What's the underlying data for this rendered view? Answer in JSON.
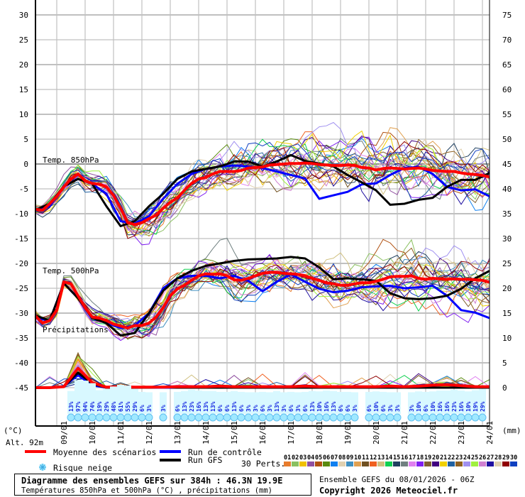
{
  "chart_data": {
    "type": "line",
    "title": "Diagramme des ensembles GEFS sur 384h : 46.3N 19.9E",
    "subtitle": "Températures 850hPa et 500hPa (°C) , précipitations (mm)",
    "run_info": "Ensemble GEFS du 08/01/2026 - 06Z",
    "copyright": "Copyright 2026 Meteociel.fr",
    "altitude_label": "Alt. 92m",
    "left_unit": "(°C)",
    "right_unit": "(mm)",
    "left_ticks": [
      30,
      25,
      20,
      15,
      10,
      5,
      0,
      -5,
      -10,
      -15,
      -20,
      -25,
      -30,
      -35,
      -40,
      -45
    ],
    "right_ticks": [
      75,
      70,
      65,
      60,
      55,
      50,
      45,
      40,
      35,
      30,
      25,
      20,
      15,
      10,
      5,
      0
    ],
    "ylim_temp": [
      -45,
      30
    ],
    "ylim_precip": [
      0,
      75
    ],
    "x_hours_range": [
      0,
      384
    ],
    "date_labels": [
      "09/01",
      "10/01",
      "11/01",
      "12/01",
      "13/01",
      "14/01",
      "15/01",
      "16/01",
      "17/01",
      "18/01",
      "19/01",
      "20/01",
      "21/01",
      "22/01",
      "23/01",
      "24/01"
    ],
    "panel_labels": {
      "t850": "Temp. 850hPa",
      "t500": "Temp. 500hPa",
      "precip": "Précipitations"
    },
    "mean_step_hours": 6,
    "t850_mean": [
      -9.1,
      -9.3,
      -8.0,
      -6.5,
      -4.6,
      -3.0,
      -2.0,
      -3.4,
      -3.9,
      -4.1,
      -4.6,
      -6.3,
      -8.9,
      -11.8,
      -12.2,
      -11.8,
      -11.0,
      -10.3,
      -8.9,
      -7.7,
      -6.8,
      -5.3,
      -3.9,
      -3.0,
      -2.7,
      -2.0,
      -1.5,
      -1.5,
      -1.5,
      -1.3,
      -0.8,
      -0.7,
      -0.6,
      -0.2,
      -0.1,
      0.0,
      0.1,
      0.1,
      0.2,
      0.1,
      -0.1,
      -0.2,
      -0.3,
      -0.3,
      -0.2,
      -0.3,
      -0.7,
      -0.8,
      -1.2,
      -0.9,
      -0.8,
      -0.9,
      -1.0,
      -0.9,
      -0.8,
      -1.0,
      -1.3,
      -1.4,
      -1.5,
      -1.5,
      -1.8,
      -2.0,
      -2.1,
      -2.3,
      -2.6
    ],
    "t500_mean": [
      -30.6,
      -32.0,
      -31.5,
      -29.4,
      -23.7,
      -24.1,
      -26.5,
      -28.9,
      -30.8,
      -31.0,
      -31.5,
      -32.2,
      -32.6,
      -33.0,
      -32.5,
      -32.5,
      -32.0,
      -30.8,
      -28.9,
      -26.5,
      -25.1,
      -24.4,
      -23.4,
      -22.5,
      -22.1,
      -22.2,
      -22.1,
      -22.5,
      -23.3,
      -23.4,
      -23.0,
      -22.5,
      -22.0,
      -21.8,
      -21.8,
      -22.0,
      -22.1,
      -22.2,
      -22.5,
      -23.0,
      -23.4,
      -23.9,
      -24.1,
      -24.4,
      -24.4,
      -24.1,
      -23.9,
      -23.9,
      -23.6,
      -23.2,
      -22.7,
      -22.6,
      -22.6,
      -22.5,
      -23.0,
      -23.2,
      -23.0,
      -23.1,
      -23.2,
      -23.1,
      -23.2,
      -23.2,
      -23.3,
      -23.4,
      -23.8
    ],
    "series_step_hours": 12,
    "t850_control": [
      -9.3,
      -8.5,
      -4.5,
      -3.0,
      -4.0,
      -6.0,
      -11.5,
      -12.0,
      -10.5,
      -7.0,
      -4.0,
      -2.0,
      -1.0,
      -0.5,
      -0.3,
      -0.5,
      -0.8,
      -1.5,
      -2.2,
      -2.9,
      -7.0,
      -6.3,
      -5.6,
      -4.1,
      -3.9,
      -2.2,
      -0.8,
      -0.6,
      -2.0,
      -4.6,
      -5.3,
      -5.1,
      -6.5
    ],
    "t850_gfs": [
      -9.2,
      -8.0,
      -4.5,
      -3.0,
      -4.0,
      -8.5,
      -12.5,
      -11.5,
      -8.5,
      -6.0,
      -3.0,
      -1.5,
      -1.0,
      -0.5,
      0.5,
      0.5,
      -0.5,
      0.5,
      1.8,
      0.6,
      0.1,
      -0.5,
      -2.2,
      -3.7,
      -5.3,
      -8.2,
      -8.0,
      -7.2,
      -6.8,
      -4.6,
      -3.2,
      -3.2,
      -1.8
    ],
    "t500_control": [
      -31.0,
      -31.5,
      -24.0,
      -27.0,
      -31.0,
      -32.0,
      -33.0,
      -32.5,
      -30.0,
      -25.0,
      -23.0,
      -22.5,
      -22.5,
      -23.0,
      -22.5,
      -23.5,
      -25.6,
      -23.7,
      -22.2,
      -23.7,
      -25.1,
      -25.8,
      -25.5,
      -24.8,
      -24.6,
      -24.5,
      -25.0,
      -24.8,
      -24.5,
      -26.5,
      -29.4,
      -29.9,
      -31.0
    ],
    "t500_gfs": [
      -30.5,
      -31.5,
      -24.0,
      -27.0,
      -31.0,
      -32.0,
      -34.5,
      -34.0,
      -30.0,
      -25.5,
      -23.0,
      -21.5,
      -20.5,
      -20.0,
      -19.5,
      -19.2,
      -19.1,
      -19.0,
      -18.7,
      -19.0,
      -20.8,
      -23.2,
      -23.0,
      -23.2,
      -23.5,
      -26.0,
      -27.0,
      -27.2,
      -27.0,
      -26.5,
      -25.1,
      -23.0,
      -21.5
    ],
    "precip_mean": [
      0,
      0,
      0.2,
      3.9,
      1.0,
      0.1,
      0.2,
      0.1,
      0.1,
      0.1,
      0.2,
      0.2,
      0.2,
      0.3,
      0.2,
      0.2,
      0.2,
      0.2,
      0.2,
      0.3,
      0.2,
      0.2,
      0.2,
      0.2,
      0.2,
      0.3,
      0.2,
      0.3,
      0.5,
      0.6,
      0.4,
      0.2,
      0.2
    ],
    "precip_control": [
      0,
      0,
      0.3,
      2.5,
      0.5,
      0,
      0,
      0.1,
      0,
      0,
      0,
      0,
      0,
      0.1,
      0,
      0,
      0,
      0,
      0,
      0,
      0,
      0,
      0,
      0,
      0,
      0,
      0,
      0,
      0,
      0,
      0,
      0,
      0
    ],
    "precip_gfs": [
      0,
      0,
      0.2,
      3.0,
      0.8,
      0,
      0,
      0,
      0,
      0.1,
      0,
      0,
      0,
      0,
      0,
      0,
      0,
      0,
      0,
      0,
      0,
      0,
      0,
      0,
      0,
      0,
      0,
      0,
      0,
      0,
      0,
      0,
      0
    ],
    "t850_spread_approx": [
      0.5,
      0.7,
      1.0,
      1.0,
      1.2,
      1.5,
      1.8,
      2.0,
      2.5,
      2.8,
      2.5,
      2.2,
      2.2,
      2.3,
      2.5,
      2.5,
      2.7,
      2.8,
      3.0,
      3.0,
      3.0,
      3.2,
      3.2,
      3.3,
      3.3,
      3.5,
      3.5,
      3.5,
      3.5,
      3.5,
      3.5,
      3.5,
      3.5
    ],
    "t500_spread_approx": [
      0.8,
      0.8,
      0.7,
      0.8,
      1.0,
      1.0,
      1.5,
      1.8,
      2.5,
      2.5,
      2.0,
      1.8,
      2.0,
      2.3,
      2.3,
      2.3,
      2.3,
      2.5,
      2.5,
      2.5,
      2.7,
      2.7,
      2.8,
      2.8,
      3.0,
      3.0,
      3.0,
      3.0,
      3.0,
      3.2,
      3.2,
      3.2,
      3.2
    ],
    "snow_risk": [
      [
        30,
        13
      ],
      [
        36,
        97
      ],
      [
        42,
        94
      ],
      [
        48,
        74
      ],
      [
        54,
        19
      ],
      [
        60,
        29
      ],
      [
        66,
        48
      ],
      [
        72,
        61
      ],
      [
        78,
        55
      ],
      [
        84,
        29
      ],
      [
        90,
        6
      ],
      [
        96,
        3
      ],
      [
        108,
        3
      ],
      [
        120,
        6
      ],
      [
        126,
        13
      ],
      [
        132,
        23
      ],
      [
        138,
        16
      ],
      [
        144,
        13
      ],
      [
        150,
        13
      ],
      [
        156,
        6
      ],
      [
        162,
        6
      ],
      [
        168,
        13
      ],
      [
        174,
        6
      ],
      [
        180,
        3
      ],
      [
        186,
        3
      ],
      [
        192,
        6
      ],
      [
        198,
        3
      ],
      [
        204,
        13
      ],
      [
        210,
        3
      ],
      [
        216,
        6
      ],
      [
        222,
        3
      ],
      [
        228,
        6
      ],
      [
        234,
        13
      ],
      [
        240,
        10
      ],
      [
        246,
        16
      ],
      [
        252,
        13
      ],
      [
        258,
        6
      ],
      [
        264,
        6
      ],
      [
        270,
        3
      ],
      [
        282,
        6
      ],
      [
        288,
        10
      ],
      [
        294,
        6
      ],
      [
        300,
        3
      ],
      [
        306,
        3
      ],
      [
        318,
        3
      ],
      [
        324,
        10
      ],
      [
        330,
        6
      ],
      [
        336,
        10
      ],
      [
        342,
        16
      ],
      [
        348,
        16
      ],
      [
        354,
        23
      ],
      [
        360,
        16
      ],
      [
        366,
        10
      ],
      [
        372,
        19
      ],
      [
        378,
        29
      ]
    ],
    "legend": {
      "mean": "Moyenne des scénarios",
      "control": "Run de contrôle",
      "gfs": "Run GFS",
      "perts": "30 Perts.",
      "snow": "Risque neige"
    },
    "colors": {
      "mean": "#ff0000",
      "control": "#0000ff",
      "gfs": "#000000",
      "snow": "#9fe8ff"
    },
    "perturbation_ids": [
      "01",
      "02",
      "03",
      "04",
      "05",
      "06",
      "07",
      "08",
      "09",
      "10",
      "11",
      "12",
      "13",
      "14",
      "15",
      "16",
      "17",
      "18",
      "19",
      "20",
      "21",
      "22",
      "23",
      "24",
      "25",
      "26",
      "27",
      "28",
      "29",
      "30"
    ],
    "perturbation_colors": [
      "#e87c2c",
      "#8ac060",
      "#f0c000",
      "#9050a0",
      "#b05010",
      "#5a8a10",
      "#1080f0",
      "#e0d0b0",
      "#4090c0",
      "#e0a050",
      "#705020",
      "#f06020",
      "#d0c080",
      "#10d050",
      "#204060",
      "#708080",
      "#e080f0",
      "#8020f0",
      "#806030",
      "#400080",
      "#f0d000",
      "#2060a0",
      "#906020",
      "#a090f0",
      "#a0f040",
      "#d080d0",
      "#2010a0",
      "#e0d0b0",
      "#900000",
      "#1040c0"
    ]
  }
}
